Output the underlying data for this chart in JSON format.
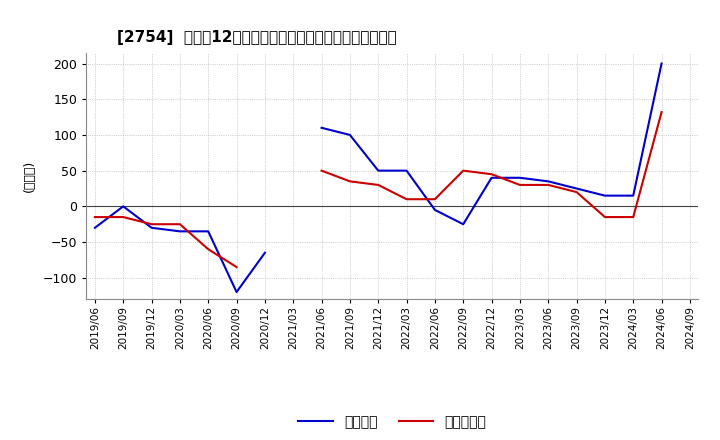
{
  "title": "[2754]  利益の12か月移動合計の対前年同期増減額の推移",
  "ylabel": "(百万円)",
  "ylim": [
    -130,
    215
  ],
  "yticks": [
    -100,
    -50,
    0,
    50,
    100,
    150,
    200
  ],
  "legend_labels": [
    "経常利益",
    "当期純利益"
  ],
  "line_colors": [
    "#0000cc",
    "#cc0000"
  ],
  "x_labels": [
    "2019/06",
    "2019/09",
    "2019/12",
    "2020/03",
    "2020/06",
    "2020/09",
    "2020/12",
    "2021/03",
    "2021/06",
    "2021/09",
    "2021/12",
    "2022/03",
    "2022/06",
    "2022/09",
    "2022/12",
    "2023/03",
    "2023/06",
    "2023/09",
    "2023/12",
    "2024/03",
    "2024/06",
    "2024/09"
  ],
  "ordinary_profit": [
    -30,
    0,
    -30,
    -35,
    -35,
    -120,
    -65,
    null,
    110,
    100,
    50,
    50,
    -5,
    -25,
    40,
    40,
    35,
    25,
    15,
    15,
    200,
    null
  ],
  "net_profit": [
    -15,
    -15,
    -25,
    -25,
    -60,
    -85,
    null,
    null,
    50,
    35,
    30,
    10,
    10,
    50,
    45,
    30,
    30,
    20,
    -15,
    -15,
    132,
    null
  ]
}
